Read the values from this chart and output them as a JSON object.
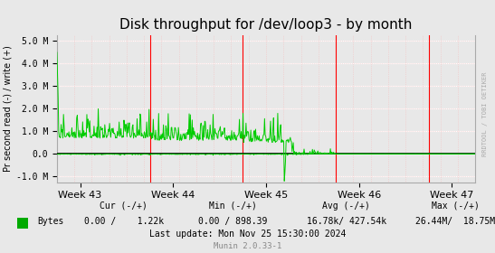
{
  "title": "Disk throughput for /dev/loop3 - by month",
  "ylabel": "Pr second read (-) / write (+)",
  "xlabel_ticks": [
    "Week 43",
    "Week 44",
    "Week 45",
    "Week 46",
    "Week 47"
  ],
  "ylim": [
    -1250000,
    5250000
  ],
  "yticks": [
    -1000000,
    0,
    1000000,
    2000000,
    3000000,
    4000000,
    5000000
  ],
  "ytick_labels": [
    "-1.0 M",
    "0.0",
    "1.0 M",
    "2.0 M",
    "3.0 M",
    "4.0 M",
    "5.0 M"
  ],
  "bg_color": "#e8e8e8",
  "plot_bg_color": "#e8e8e8",
  "grid_color_major": "#ffffff",
  "grid_color_minor": "#f5c0c0",
  "line_color": "#00cc00",
  "zero_line_color": "#000000",
  "red_vline_color": "#ff0000",
  "watermark_text": "RRDTOOL / TOBI OETIKER",
  "legend_label": "Bytes",
  "legend_color": "#00aa00",
  "footer_cur": "Cur (-/+)",
  "footer_min": "Min (-/+)",
  "footer_avg": "Avg (-/+)",
  "footer_max": "Max (-/+)",
  "footer_bytes": "Bytes",
  "footer_cur_val": "0.00 /    1.22k",
  "footer_min_val": "0.00 / 898.39",
  "footer_avg_val": "16.78k/ 427.54k",
  "footer_max_val": "26.44M/  18.75M",
  "footer_last_update": "Last update: Mon Nov 25 15:30:00 2024",
  "munin_version": "Munin 2.0.33-1",
  "right_axis_color": "#aaaaaa"
}
